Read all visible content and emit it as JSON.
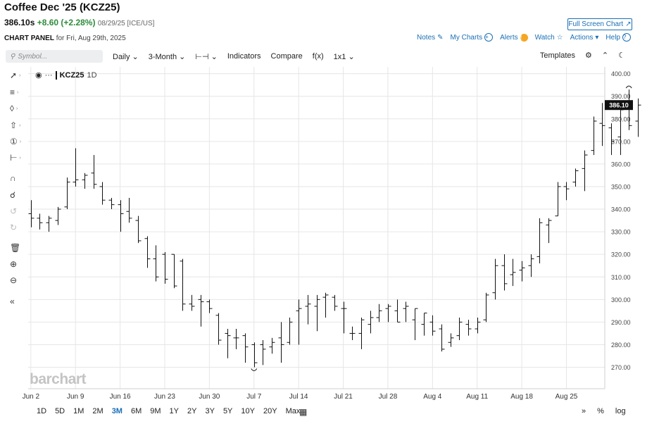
{
  "header": {
    "title": "Coffee Dec '25 (KCZ25)",
    "last_price": "386.10s",
    "change": "+8.60 (+2.28%)",
    "date_exchange": "08/29/25 [ICE/US]",
    "panel_label": "CHART PANEL",
    "panel_for": "for Fri, Aug 29th, 2025",
    "fullscreen_label": "Full Screen Chart",
    "notes": "Notes",
    "my_charts": "My Charts",
    "alerts": "Alerts",
    "watch": "Watch",
    "actions": "Actions",
    "help": "Help"
  },
  "toolbar": {
    "search_placeholder": "Symbol...",
    "period": "Daily",
    "range": "3-Month",
    "indicators": "Indicators",
    "compare": "Compare",
    "fx": "f(x)",
    "layout": "1x1",
    "templates": "Templates"
  },
  "legend": {
    "symbol": "KCZ25",
    "timeframe": "1D"
  },
  "watermark": "barchart",
  "ranges": [
    "1D",
    "5D",
    "1M",
    "2M",
    "3M",
    "6M",
    "9M",
    "1Y",
    "2Y",
    "3Y",
    "5Y",
    "10Y",
    "20Y",
    "Max"
  ],
  "active_range": "3M",
  "bottom_right": {
    "percent": "%",
    "log": "log"
  },
  "chart_data": {
    "type": "bar",
    "style": "ohlc",
    "symbol": "KCZ25",
    "y_ticks": [
      270,
      280,
      290,
      300,
      310,
      320,
      330,
      340,
      350,
      360,
      370,
      380,
      390,
      400
    ],
    "y_tick_labels": [
      "270.00",
      "280.00",
      "290.00",
      "300.00",
      "310.00",
      "320.00",
      "330.00",
      "340.00",
      "350.00",
      "360.00",
      "370.00",
      "380.00",
      "390.00",
      "400.00"
    ],
    "ylim": [
      260.5,
      403
    ],
    "x_tick_labels": [
      {
        "label": "Jun 2",
        "index": 0
      },
      {
        "label": "Jun 9",
        "index": 5
      },
      {
        "label": "Jun 16",
        "index": 10
      },
      {
        "label": "Jun 23",
        "index": 15
      },
      {
        "label": "Jun 30",
        "index": 20
      },
      {
        "label": "Jul 7",
        "index": 25
      },
      {
        "label": "Jul 14",
        "index": 30
      },
      {
        "label": "Jul 21",
        "index": 35
      },
      {
        "label": "Jul 28",
        "index": 40
      },
      {
        "label": "Aug 4",
        "index": 45
      },
      {
        "label": "Aug 11",
        "index": 50
      },
      {
        "label": "Aug 18",
        "index": 55
      },
      {
        "label": "Aug 25",
        "index": 60
      }
    ],
    "index_range": [
      -0.3,
      64.3
    ],
    "last_price_label": "386.10",
    "bars": [
      {
        "o": 338,
        "h": 344,
        "l": 332,
        "c": 336
      },
      {
        "o": 336,
        "h": 338,
        "l": 331,
        "c": 334
      },
      {
        "o": 334,
        "h": 337,
        "l": 330,
        "c": 336
      },
      {
        "o": 335,
        "h": 341,
        "l": 333,
        "c": 340
      },
      {
        "o": 341,
        "h": 354,
        "l": 340,
        "c": 352
      },
      {
        "o": 352,
        "h": 367,
        "l": 350,
        "c": 353
      },
      {
        "o": 353,
        "h": 356,
        "l": 349,
        "c": 355
      },
      {
        "o": 356,
        "h": 364,
        "l": 349,
        "c": 351
      },
      {
        "o": 350,
        "h": 352,
        "l": 342,
        "c": 344
      },
      {
        "o": 344,
        "h": 345,
        "l": 340,
        "c": 342
      },
      {
        "o": 342,
        "h": 344,
        "l": 330,
        "c": 338
      },
      {
        "o": 339,
        "h": 345,
        "l": 334,
        "c": 336
      },
      {
        "o": 335,
        "h": 337,
        "l": 325,
        "c": 326
      },
      {
        "o": 327,
        "h": 328,
        "l": 314,
        "c": 318
      },
      {
        "o": 318,
        "h": 324,
        "l": 308,
        "c": 310
      },
      {
        "o": 320,
        "h": 321,
        "l": 307,
        "c": 309
      },
      {
        "o": 320,
        "h": 320,
        "l": 305,
        "c": 306
      },
      {
        "o": 317,
        "h": 318,
        "l": 295,
        "c": 298
      },
      {
        "o": 298,
        "h": 302,
        "l": 295,
        "c": 297
      },
      {
        "o": 300,
        "h": 302,
        "l": 288,
        "c": 299
      },
      {
        "o": 299,
        "h": 300,
        "l": 294,
        "c": 296
      },
      {
        "o": 293,
        "h": 294,
        "l": 280,
        "c": 282
      },
      {
        "o": 285,
        "h": 287,
        "l": 274,
        "c": 284
      },
      {
        "o": 283,
        "h": 287,
        "l": 278,
        "c": 283
      },
      {
        "o": 284,
        "h": 285,
        "l": 272,
        "c": 279
      },
      {
        "o": 280,
        "h": 281,
        "l": 270,
        "c": 272
      },
      {
        "o": 280,
        "h": 282,
        "l": 271,
        "c": 278
      },
      {
        "o": 279,
        "h": 283,
        "l": 276,
        "c": 281
      },
      {
        "o": 283,
        "h": 290,
        "l": 272,
        "c": 280
      },
      {
        "o": 281,
        "h": 292,
        "l": 280,
        "c": 290
      },
      {
        "o": 295,
        "h": 300,
        "l": 280,
        "c": 296
      },
      {
        "o": 297,
        "h": 302,
        "l": 289,
        "c": 298
      },
      {
        "o": 297,
        "h": 302,
        "l": 286,
        "c": 300
      },
      {
        "o": 301,
        "h": 303,
        "l": 292,
        "c": 302
      },
      {
        "o": 301,
        "h": 302,
        "l": 295,
        "c": 297
      },
      {
        "o": 296,
        "h": 299,
        "l": 285,
        "c": 296
      },
      {
        "o": 285,
        "h": 288,
        "l": 282,
        "c": 285
      },
      {
        "o": 285,
        "h": 292,
        "l": 278,
        "c": 291
      },
      {
        "o": 289,
        "h": 295,
        "l": 285,
        "c": 292
      },
      {
        "o": 292,
        "h": 298,
        "l": 290,
        "c": 295
      },
      {
        "o": 296,
        "h": 298,
        "l": 290,
        "c": 297
      },
      {
        "o": 295,
        "h": 300,
        "l": 290,
        "c": 290
      },
      {
        "o": 296,
        "h": 299,
        "l": 290,
        "c": 297
      },
      {
        "o": 291,
        "h": 296,
        "l": 282,
        "c": 296
      },
      {
        "o": 289,
        "h": 294,
        "l": 284,
        "c": 294
      },
      {
        "o": 290,
        "h": 293,
        "l": 284,
        "c": 286
      },
      {
        "o": 287,
        "h": 289,
        "l": 277,
        "c": 278
      },
      {
        "o": 281,
        "h": 285,
        "l": 279,
        "c": 283
      },
      {
        "o": 284,
        "h": 292,
        "l": 282,
        "c": 290
      },
      {
        "o": 289,
        "h": 291,
        "l": 284,
        "c": 287
      },
      {
        "o": 287,
        "h": 292,
        "l": 285,
        "c": 290
      },
      {
        "o": 291,
        "h": 303,
        "l": 290,
        "c": 302
      },
      {
        "o": 303,
        "h": 318,
        "l": 300,
        "c": 315
      },
      {
        "o": 315,
        "h": 320,
        "l": 304,
        "c": 307
      },
      {
        "o": 311,
        "h": 318,
        "l": 306,
        "c": 312
      },
      {
        "o": 313,
        "h": 317,
        "l": 308,
        "c": 314
      },
      {
        "o": 315,
        "h": 320,
        "l": 310,
        "c": 318
      },
      {
        "o": 319,
        "h": 336,
        "l": 316,
        "c": 334
      },
      {
        "o": 333,
        "h": 336,
        "l": 325,
        "c": 335
      },
      {
        "o": 337,
        "h": 352,
        "l": 337,
        "c": 350
      },
      {
        "o": 350,
        "h": 352,
        "l": 344,
        "c": 349
      },
      {
        "o": 352,
        "h": 358,
        "l": 350,
        "c": 357
      },
      {
        "o": 358,
        "h": 366,
        "l": 348,
        "c": 364
      },
      {
        "o": 366,
        "h": 381,
        "l": 364,
        "c": 379
      },
      {
        "o": 378,
        "h": 387,
        "l": 368,
        "c": 377
      },
      {
        "o": 376,
        "h": 378,
        "l": 364,
        "c": 370
      },
      {
        "o": 372,
        "h": 386,
        "l": 364,
        "c": 384
      },
      {
        "o": 386,
        "h": 393,
        "l": 375,
        "c": 377
      },
      {
        "o": 379,
        "h": 389,
        "l": 372,
        "c": 386.1
      }
    ]
  }
}
